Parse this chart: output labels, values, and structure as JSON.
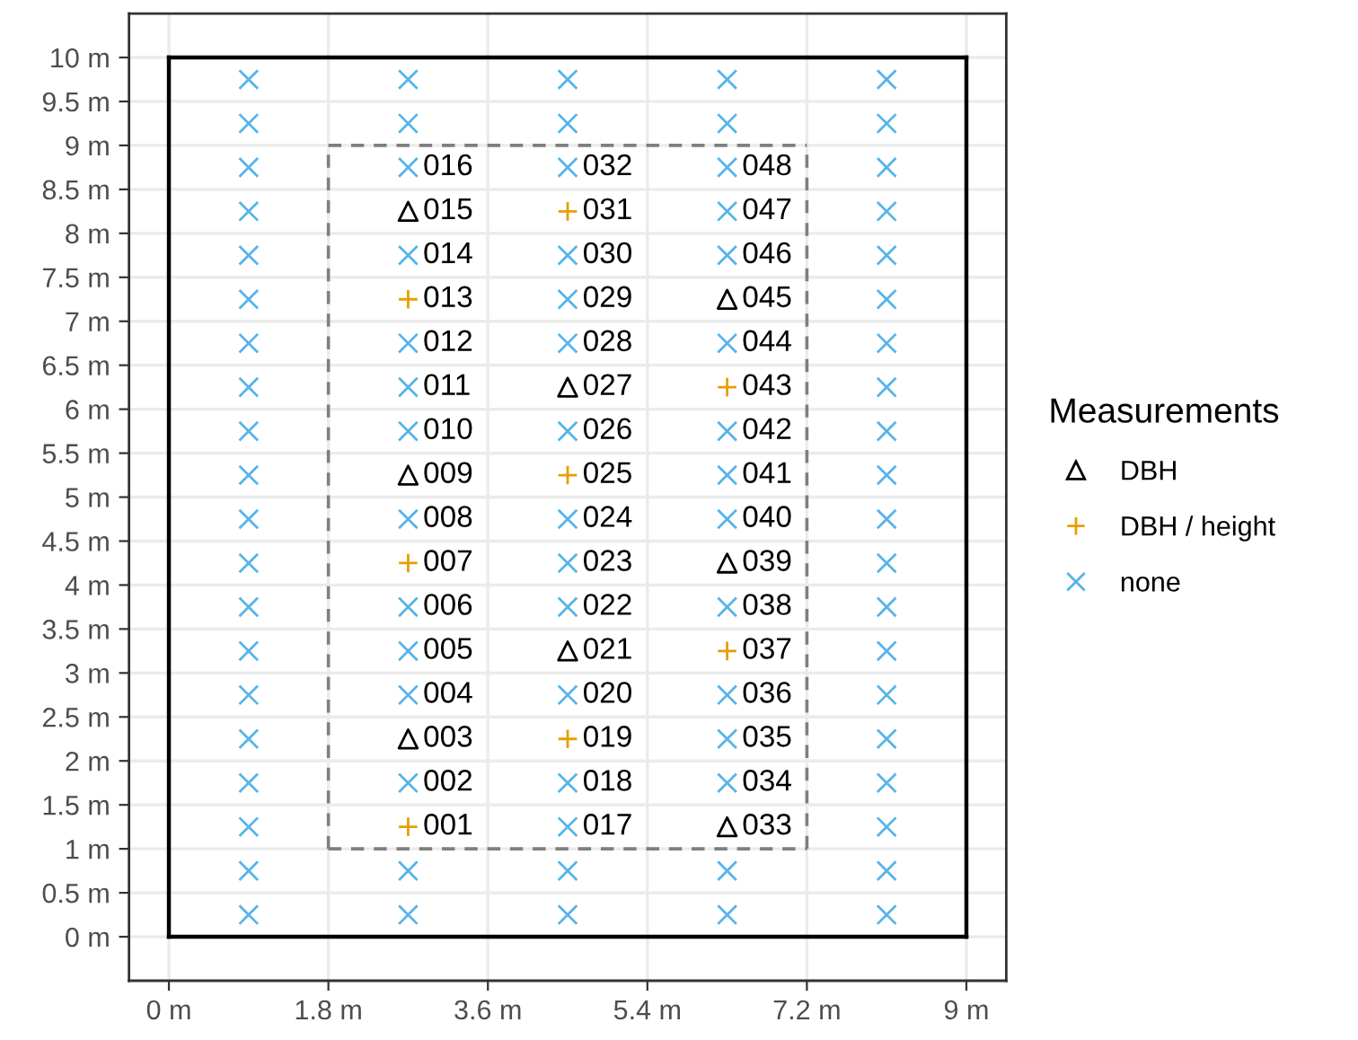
{
  "chart_data": {
    "type": "scatter",
    "legend_title": "Measurements",
    "legend": "right",
    "grid": true,
    "xlim": [
      -0.45,
      9.45
    ],
    "ylim": [
      -0.5,
      10.5
    ],
    "xticks": [
      {
        "value": 0,
        "label": "0 m"
      },
      {
        "value": 1.8,
        "label": "1.8 m"
      },
      {
        "value": 3.6,
        "label": "3.6 m"
      },
      {
        "value": 5.4,
        "label": "5.4 m"
      },
      {
        "value": 7.2,
        "label": "7.2 m"
      },
      {
        "value": 9,
        "label": "9 m"
      }
    ],
    "yticks": [
      {
        "value": 0,
        "label": "0 m"
      },
      {
        "value": 0.5,
        "label": "0.5 m"
      },
      {
        "value": 1,
        "label": "1 m"
      },
      {
        "value": 1.5,
        "label": "1.5 m"
      },
      {
        "value": 2,
        "label": "2 m"
      },
      {
        "value": 2.5,
        "label": "2.5 m"
      },
      {
        "value": 3,
        "label": "3 m"
      },
      {
        "value": 3.5,
        "label": "3.5 m"
      },
      {
        "value": 4,
        "label": "4 m"
      },
      {
        "value": 4.5,
        "label": "4.5 m"
      },
      {
        "value": 5,
        "label": "5 m"
      },
      {
        "value": 5.5,
        "label": "5.5 m"
      },
      {
        "value": 6,
        "label": "6 m"
      },
      {
        "value": 6.5,
        "label": "6.5 m"
      },
      {
        "value": 7,
        "label": "7 m"
      },
      {
        "value": 7.5,
        "label": "7.5 m"
      },
      {
        "value": 8,
        "label": "8 m"
      },
      {
        "value": 8.5,
        "label": "8.5 m"
      },
      {
        "value": 9,
        "label": "9 m"
      },
      {
        "value": 9.5,
        "label": "9.5 m"
      },
      {
        "value": 10,
        "label": "10 m"
      }
    ],
    "series": [
      {
        "type": "line",
        "color": "#000000",
        "line_style": "solid",
        "x": [
          0,
          9
        ],
        "values": [
          0,
          0
        ]
      },
      {
        "type": "line",
        "color": "#000000",
        "line_style": "solid",
        "x": [
          9,
          9
        ],
        "values": [
          0,
          10
        ]
      },
      {
        "type": "line",
        "color": "#000000",
        "line_style": "solid",
        "x": [
          0,
          9
        ],
        "values": [
          10,
          10
        ]
      },
      {
        "type": "line",
        "color": "#000000",
        "line_style": "solid",
        "x": [
          0,
          0
        ],
        "values": [
          0,
          10
        ]
      },
      {
        "type": "line",
        "color": "#7f7f7f",
        "line_style": "dashed",
        "x": [
          1.8,
          7.2
        ],
        "values": [
          1,
          1
        ]
      },
      {
        "type": "line",
        "color": "#7f7f7f",
        "line_style": "dashed",
        "x": [
          7.2,
          7.2
        ],
        "values": [
          1,
          9
        ]
      },
      {
        "type": "line",
        "color": "#7f7f7f",
        "line_style": "dashed",
        "x": [
          1.8,
          7.2
        ],
        "values": [
          9,
          9
        ]
      },
      {
        "type": "line",
        "color": "#7f7f7f",
        "line_style": "dashed",
        "x": [
          1.8,
          1.8
        ],
        "values": [
          1,
          9
        ]
      },
      {
        "name": "DBH",
        "type": "scatter",
        "marker": "triangle",
        "color": "#000000",
        "x": [
          2.7,
          2.7,
          2.7,
          4.5,
          4.5,
          6.3,
          6.3,
          6.3
        ],
        "values": [
          8.25,
          5.25,
          2.25,
          6.25,
          3.25,
          7.25,
          4.25,
          1.25
        ]
      },
      {
        "name": "DBH / height",
        "type": "scatter",
        "marker": "plus",
        "color": "#E69F00",
        "x": [
          2.7,
          2.7,
          2.7,
          4.5,
          4.5,
          4.5,
          6.3,
          6.3
        ],
        "values": [
          7.25,
          4.25,
          1.25,
          8.25,
          5.25,
          2.25,
          6.25,
          3.25
        ]
      },
      {
        "name": "none",
        "type": "scatter",
        "marker": "x",
        "color": "#56B4E9",
        "x": [
          0.9,
          0.9,
          0.9,
          0.9,
          0.9,
          0.9,
          0.9,
          0.9,
          0.9,
          0.9,
          0.9,
          0.9,
          0.9,
          0.9,
          0.9,
          0.9,
          0.9,
          0.9,
          0.9,
          0.9,
          2.7,
          2.7,
          2.7,
          2.7,
          2.7,
          2.7,
          2.7,
          2.7,
          2.7,
          2.7,
          2.7,
          2.7,
          2.7,
          2.7,
          4.5,
          4.5,
          4.5,
          4.5,
          4.5,
          4.5,
          4.5,
          4.5,
          4.5,
          4.5,
          4.5,
          4.5,
          4.5,
          4.5,
          4.5,
          6.3,
          6.3,
          6.3,
          6.3,
          6.3,
          6.3,
          6.3,
          6.3,
          6.3,
          6.3,
          6.3,
          6.3,
          6.3,
          6.3,
          6.3,
          8.1,
          8.1,
          8.1,
          8.1,
          8.1,
          8.1,
          8.1,
          8.1,
          8.1,
          8.1,
          8.1,
          8.1,
          8.1,
          8.1,
          8.1,
          8.1,
          8.1,
          8.1,
          8.1,
          8.1
        ],
        "values": [
          0.25,
          0.75,
          1.25,
          1.75,
          2.25,
          2.75,
          3.25,
          3.75,
          4.25,
          4.75,
          5.25,
          5.75,
          6.25,
          6.75,
          7.25,
          7.75,
          8.25,
          8.75,
          9.25,
          9.75,
          0.25,
          0.75,
          1.75,
          2.75,
          3.25,
          3.75,
          4.75,
          5.75,
          6.25,
          6.75,
          7.75,
          8.75,
          9.25,
          9.75,
          0.25,
          0.75,
          1.25,
          1.75,
          2.75,
          3.75,
          4.25,
          4.75,
          5.75,
          6.75,
          7.25,
          7.75,
          8.75,
          9.25,
          9.75,
          0.25,
          0.75,
          1.75,
          2.25,
          2.75,
          3.75,
          4.75,
          5.25,
          5.75,
          6.75,
          7.75,
          8.25,
          8.75,
          9.25,
          9.75,
          0.25,
          0.75,
          1.25,
          1.75,
          2.25,
          2.75,
          3.25,
          3.75,
          4.25,
          4.75,
          5.25,
          5.75,
          6.25,
          6.75,
          7.25,
          7.75,
          8.25,
          8.75,
          9.25,
          9.75
        ]
      }
    ],
    "annotations": [
      {
        "text": "001",
        "x": 2.7,
        "y": 1.25
      },
      {
        "text": "002",
        "x": 2.7,
        "y": 1.75
      },
      {
        "text": "003",
        "x": 2.7,
        "y": 2.25
      },
      {
        "text": "004",
        "x": 2.7,
        "y": 2.75
      },
      {
        "text": "005",
        "x": 2.7,
        "y": 3.25
      },
      {
        "text": "006",
        "x": 2.7,
        "y": 3.75
      },
      {
        "text": "007",
        "x": 2.7,
        "y": 4.25
      },
      {
        "text": "008",
        "x": 2.7,
        "y": 4.75
      },
      {
        "text": "009",
        "x": 2.7,
        "y": 5.25
      },
      {
        "text": "010",
        "x": 2.7,
        "y": 5.75
      },
      {
        "text": "011",
        "x": 2.7,
        "y": 6.25
      },
      {
        "text": "012",
        "x": 2.7,
        "y": 6.75
      },
      {
        "text": "013",
        "x": 2.7,
        "y": 7.25
      },
      {
        "text": "014",
        "x": 2.7,
        "y": 7.75
      },
      {
        "text": "015",
        "x": 2.7,
        "y": 8.25
      },
      {
        "text": "016",
        "x": 2.7,
        "y": 8.75
      },
      {
        "text": "017",
        "x": 4.5,
        "y": 1.25
      },
      {
        "text": "018",
        "x": 4.5,
        "y": 1.75
      },
      {
        "text": "019",
        "x": 4.5,
        "y": 2.25
      },
      {
        "text": "020",
        "x": 4.5,
        "y": 2.75
      },
      {
        "text": "021",
        "x": 4.5,
        "y": 3.25
      },
      {
        "text": "022",
        "x": 4.5,
        "y": 3.75
      },
      {
        "text": "023",
        "x": 4.5,
        "y": 4.25
      },
      {
        "text": "024",
        "x": 4.5,
        "y": 4.75
      },
      {
        "text": "025",
        "x": 4.5,
        "y": 5.25
      },
      {
        "text": "026",
        "x": 4.5,
        "y": 5.75
      },
      {
        "text": "027",
        "x": 4.5,
        "y": 6.25
      },
      {
        "text": "028",
        "x": 4.5,
        "y": 6.75
      },
      {
        "text": "029",
        "x": 4.5,
        "y": 7.25
      },
      {
        "text": "030",
        "x": 4.5,
        "y": 7.75
      },
      {
        "text": "031",
        "x": 4.5,
        "y": 8.25
      },
      {
        "text": "032",
        "x": 4.5,
        "y": 8.75
      },
      {
        "text": "033",
        "x": 6.3,
        "y": 1.25
      },
      {
        "text": "034",
        "x": 6.3,
        "y": 1.75
      },
      {
        "text": "035",
        "x": 6.3,
        "y": 2.25
      },
      {
        "text": "036",
        "x": 6.3,
        "y": 2.75
      },
      {
        "text": "037",
        "x": 6.3,
        "y": 3.25
      },
      {
        "text": "038",
        "x": 6.3,
        "y": 3.75
      },
      {
        "text": "039",
        "x": 6.3,
        "y": 4.25
      },
      {
        "text": "040",
        "x": 6.3,
        "y": 4.75
      },
      {
        "text": "041",
        "x": 6.3,
        "y": 5.25
      },
      {
        "text": "042",
        "x": 6.3,
        "y": 5.75
      },
      {
        "text": "043",
        "x": 6.3,
        "y": 6.25
      },
      {
        "text": "044",
        "x": 6.3,
        "y": 6.75
      },
      {
        "text": "045",
        "x": 6.3,
        "y": 7.25
      },
      {
        "text": "046",
        "x": 6.3,
        "y": 7.75
      },
      {
        "text": "047",
        "x": 6.3,
        "y": 8.25
      },
      {
        "text": "048",
        "x": 6.3,
        "y": 8.75
      }
    ]
  }
}
